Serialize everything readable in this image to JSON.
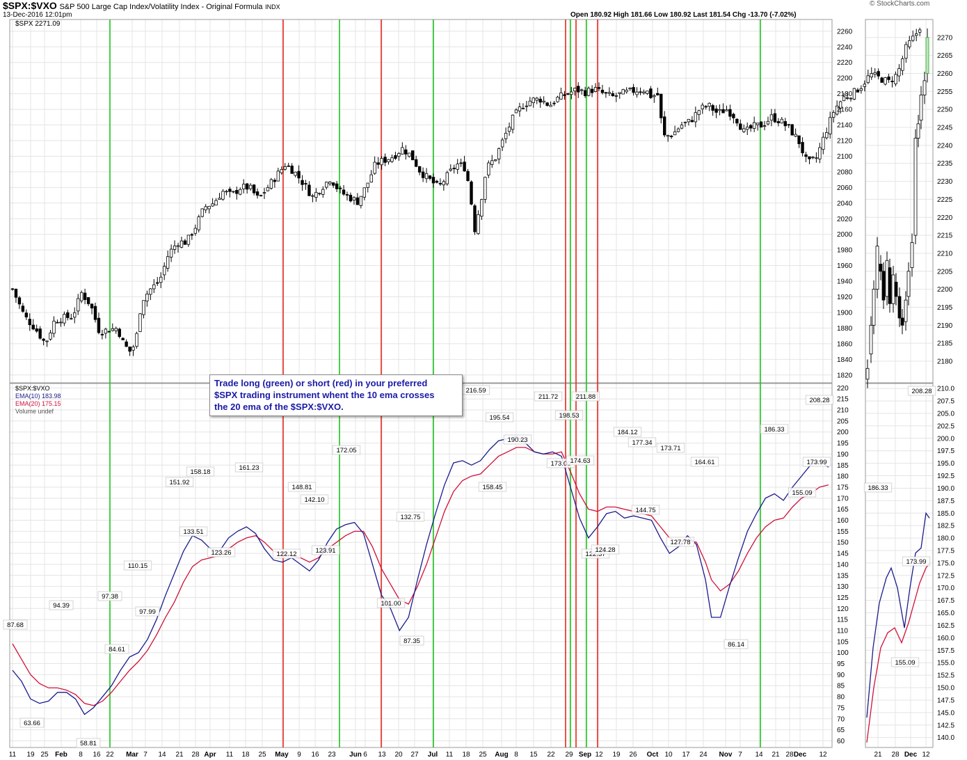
{
  "header": {
    "symbol": "$SPX:$VXO",
    "description": "S&P 500 Large Cap Index/Volatility Index - Original Formula",
    "exchange": "INDX",
    "timestamp": "13-Dec-2016 12:01pm",
    "source": "© StockCharts.com",
    "ohlc_line": "Open 180.92  High 181.66  Low 180.92  Last 181.54  Chg -13.70 (-7.02%)",
    "price_label": "$SPX 2271.09"
  },
  "legend": {
    "ratio": "$SPX:$VXO",
    "ema10": "EMA(10) 183.98",
    "ema20": "EMA(20) 175.15",
    "volume": "Volume undef"
  },
  "annotation": {
    "line1": "Trade long (green) or short (red) in your preferred",
    "line2": "$SPX trading instrument whent the 10 ema crosses",
    "line3": "the 20 ema of the $SPX:$VXO."
  },
  "colors": {
    "long": "#19c419",
    "short": "#e8251a",
    "ema10": "#1a1a8c",
    "ema20": "#d0103a",
    "grid": "#e4e4e4"
  },
  "chart_data": [
    {
      "type": "candlestick",
      "series": "$SPX",
      "ylim": [
        1810,
        2275
      ],
      "y_ticks": [
        1820,
        1840,
        1860,
        1880,
        1900,
        1920,
        1940,
        1960,
        1980,
        2000,
        2020,
        2040,
        2060,
        2080,
        2100,
        2120,
        2140,
        2160,
        2180,
        2200,
        2220,
        2240,
        2260
      ],
      "x_tick_labels": [
        "11",
        "19",
        "25",
        "Feb",
        "8",
        "16",
        "22",
        "Mar",
        "7",
        "14",
        "21",
        "28",
        "Apr",
        "11",
        "18",
        "25",
        "May",
        "9",
        "16",
        "23",
        "Jun",
        "6",
        "13",
        "20",
        "27",
        "Jul",
        "11",
        "18",
        "25",
        "Aug",
        "8",
        "15",
        "22",
        "29",
        "Sep",
        "12",
        "19",
        "26",
        "Oct",
        "10",
        "17",
        "24",
        "Nov",
        "7",
        "14",
        "21",
        "28",
        "Dec",
        "12"
      ],
      "close_path": [
        [
          0,
          1930
        ],
        [
          8,
          1895
        ],
        [
          15,
          1880
        ],
        [
          22,
          1860
        ],
        [
          28,
          1890
        ],
        [
          34,
          1893
        ],
        [
          40,
          1895
        ],
        [
          46,
          1925
        ],
        [
          52,
          1910
        ],
        [
          58,
          1875
        ],
        [
          64,
          1878
        ],
        [
          70,
          1880
        ],
        [
          74,
          1860
        ],
        [
          78,
          1850
        ],
        [
          82,
          1860
        ],
        [
          86,
          1915
        ],
        [
          92,
          1930
        ],
        [
          98,
          1940
        ],
        [
          104,
          1975
        ],
        [
          110,
          1990
        ],
        [
          116,
          1990
        ],
        [
          122,
          2010
        ],
        [
          128,
          2035
        ],
        [
          134,
          2040
        ],
        [
          140,
          2055
        ],
        [
          146,
          2050
        ],
        [
          152,
          2060
        ],
        [
          158,
          2060
        ],
        [
          164,
          2045
        ],
        [
          170,
          2060
        ],
        [
          176,
          2075
        ],
        [
          182,
          2090
        ],
        [
          188,
          2080
        ],
        [
          194,
          2065
        ],
        [
          200,
          2048
        ],
        [
          206,
          2060
        ],
        [
          212,
          2072
        ],
        [
          218,
          2055
        ],
        [
          224,
          2048
        ],
        [
          230,
          2042
        ],
        [
          236,
          2062
        ],
        [
          242,
          2090
        ],
        [
          248,
          2095
        ],
        [
          254,
          2100
        ],
        [
          260,
          2110
        ],
        [
          266,
          2100
        ],
        [
          272,
          2080
        ],
        [
          278,
          2070
        ],
        [
          284,
          2060
        ],
        [
          290,
          2075
        ],
        [
          296,
          2090
        ],
        [
          302,
          2085
        ],
        [
          305,
          2055
        ],
        [
          308,
          2005
        ],
        [
          312,
          2040
        ],
        [
          316,
          2085
        ],
        [
          322,
          2098
        ],
        [
          328,
          2125
        ],
        [
          334,
          2150
        ],
        [
          340,
          2165
        ],
        [
          346,
          2172
        ],
        [
          352,
          2173
        ],
        [
          358,
          2165
        ],
        [
          364,
          2175
        ],
        [
          370,
          2180
        ],
        [
          376,
          2185
        ],
        [
          382,
          2182
        ],
        [
          388,
          2186
        ],
        [
          394,
          2180
        ],
        [
          400,
          2176
        ],
        [
          406,
          2180
        ],
        [
          412,
          2183
        ],
        [
          418,
          2185
        ],
        [
          422,
          2185
        ],
        [
          426,
          2176
        ],
        [
          430,
          2180
        ],
        [
          434,
          2125
        ],
        [
          440,
          2128
        ],
        [
          446,
          2140
        ],
        [
          452,
          2145
        ],
        [
          458,
          2160
        ],
        [
          464,
          2165
        ],
        [
          470,
          2155
        ],
        [
          476,
          2160
        ],
        [
          482,
          2150
        ],
        [
          488,
          2130
        ],
        [
          494,
          2138
        ],
        [
          500,
          2140
        ],
        [
          506,
          2150
        ],
        [
          512,
          2145
        ],
        [
          518,
          2135
        ],
        [
          524,
          2120
        ],
        [
          530,
          2090
        ],
        [
          536,
          2098
        ],
        [
          542,
          2130
        ],
        [
          548,
          2160
        ],
        [
          554,
          2175
        ],
        [
          560,
          2180
        ],
        [
          566,
          2190
        ],
        [
          572,
          2205
        ],
        [
          578,
          2200
        ],
        [
          584,
          2195
        ],
        [
          590,
          2205
        ],
        [
          596,
          2240
        ],
        [
          602,
          2255
        ],
        [
          606,
          2270
        ]
      ]
    },
    {
      "type": "line",
      "series": [
        "$SPX:$VXO EMA(10)",
        "$SPX:$VXO EMA(20)"
      ],
      "ylim": [
        57,
        222
      ],
      "y_ticks": [
        60,
        65,
        70,
        75,
        80,
        85,
        90,
        95,
        100,
        105,
        110,
        115,
        120,
        125,
        130,
        135,
        140,
        145,
        150,
        155,
        160,
        165,
        170,
        175,
        180,
        185,
        190,
        195,
        200,
        205,
        210,
        215,
        220
      ],
      "ema10": [
        [
          0,
          92
        ],
        [
          6,
          87
        ],
        [
          12,
          79
        ],
        [
          18,
          77
        ],
        [
          24,
          78
        ],
        [
          30,
          82
        ],
        [
          36,
          82
        ],
        [
          42,
          79
        ],
        [
          48,
          72
        ],
        [
          54,
          75
        ],
        [
          60,
          80
        ],
        [
          66,
          85
        ],
        [
          72,
          92
        ],
        [
          78,
          98
        ],
        [
          84,
          100
        ],
        [
          90,
          106
        ],
        [
          96,
          115
        ],
        [
          102,
          126
        ],
        [
          108,
          136
        ],
        [
          114,
          146
        ],
        [
          120,
          153
        ],
        [
          126,
          151
        ],
        [
          132,
          147
        ],
        [
          138,
          146
        ],
        [
          144,
          152
        ],
        [
          150,
          155
        ],
        [
          156,
          157
        ],
        [
          162,
          154
        ],
        [
          168,
          147
        ],
        [
          174,
          142
        ],
        [
          180,
          141
        ],
        [
          186,
          143
        ],
        [
          192,
          140
        ],
        [
          198,
          137
        ],
        [
          204,
          142
        ],
        [
          210,
          150
        ],
        [
          216,
          156
        ],
        [
          222,
          158
        ],
        [
          228,
          159
        ],
        [
          234,
          154
        ],
        [
          240,
          140
        ],
        [
          246,
          126
        ],
        [
          252,
          120
        ],
        [
          258,
          110
        ],
        [
          264,
          116
        ],
        [
          270,
          133
        ],
        [
          276,
          149
        ],
        [
          282,
          163
        ],
        [
          288,
          176
        ],
        [
          294,
          186
        ],
        [
          300,
          187
        ],
        [
          306,
          185
        ],
        [
          312,
          187
        ],
        [
          318,
          192
        ],
        [
          324,
          196
        ],
        [
          330,
          197
        ],
        [
          336,
          198
        ],
        [
          342,
          195
        ],
        [
          348,
          191
        ],
        [
          354,
          190
        ],
        [
          360,
          191
        ],
        [
          366,
          189
        ],
        [
          372,
          175
        ],
        [
          378,
          161
        ],
        [
          384,
          152
        ],
        [
          390,
          157
        ],
        [
          396,
          163
        ],
        [
          402,
          164
        ],
        [
          408,
          161
        ],
        [
          414,
          162
        ],
        [
          420,
          161
        ],
        [
          426,
          160
        ],
        [
          432,
          152
        ],
        [
          438,
          145
        ],
        [
          444,
          148
        ],
        [
          450,
          153
        ],
        [
          456,
          149
        ],
        [
          462,
          133
        ],
        [
          466,
          116
        ],
        [
          472,
          116
        ],
        [
          478,
          130
        ],
        [
          484,
          143
        ],
        [
          490,
          155
        ],
        [
          496,
          163
        ],
        [
          502,
          170
        ],
        [
          508,
          172
        ],
        [
          514,
          169
        ],
        [
          520,
          175
        ],
        [
          526,
          180
        ],
        [
          532,
          185
        ],
        [
          538,
          187
        ],
        [
          544,
          184
        ]
      ],
      "ema20": [
        [
          0,
          104
        ],
        [
          6,
          97
        ],
        [
          12,
          90
        ],
        [
          18,
          86
        ],
        [
          24,
          84
        ],
        [
          30,
          84
        ],
        [
          36,
          83
        ],
        [
          42,
          81
        ],
        [
          48,
          77
        ],
        [
          54,
          76
        ],
        [
          60,
          78
        ],
        [
          66,
          82
        ],
        [
          72,
          87
        ],
        [
          78,
          92
        ],
        [
          84,
          96
        ],
        [
          90,
          101
        ],
        [
          96,
          108
        ],
        [
          102,
          116
        ],
        [
          108,
          123
        ],
        [
          114,
          132
        ],
        [
          120,
          139
        ],
        [
          126,
          142
        ],
        [
          132,
          143
        ],
        [
          138,
          144
        ],
        [
          144,
          147
        ],
        [
          150,
          150
        ],
        [
          156,
          152
        ],
        [
          162,
          153
        ],
        [
          168,
          150
        ],
        [
          174,
          146
        ],
        [
          180,
          145
        ],
        [
          186,
          144
        ],
        [
          192,
          143
        ],
        [
          198,
          141
        ],
        [
          204,
          143
        ],
        [
          210,
          147
        ],
        [
          216,
          150
        ],
        [
          222,
          153
        ],
        [
          228,
          155
        ],
        [
          234,
          155
        ],
        [
          240,
          148
        ],
        [
          246,
          138
        ],
        [
          252,
          131
        ],
        [
          258,
          124
        ],
        [
          264,
          122
        ],
        [
          270,
          130
        ],
        [
          276,
          140
        ],
        [
          282,
          152
        ],
        [
          288,
          164
        ],
        [
          294,
          173
        ],
        [
          300,
          178
        ],
        [
          306,
          180
        ],
        [
          312,
          181
        ],
        [
          318,
          185
        ],
        [
          324,
          189
        ],
        [
          330,
          191
        ],
        [
          336,
          193
        ],
        [
          342,
          193
        ],
        [
          348,
          191
        ],
        [
          354,
          190
        ],
        [
          360,
          190
        ],
        [
          366,
          191
        ],
        [
          372,
          182
        ],
        [
          378,
          172
        ],
        [
          384,
          165
        ],
        [
          390,
          164
        ],
        [
          396,
          166
        ],
        [
          402,
          166
        ],
        [
          408,
          165
        ],
        [
          414,
          164
        ],
        [
          420,
          163
        ],
        [
          426,
          162
        ],
        [
          432,
          157
        ],
        [
          438,
          152
        ],
        [
          444,
          150
        ],
        [
          450,
          151
        ],
        [
          456,
          150
        ],
        [
          462,
          141
        ],
        [
          466,
          133
        ],
        [
          472,
          128
        ],
        [
          478,
          131
        ],
        [
          484,
          137
        ],
        [
          490,
          145
        ],
        [
          496,
          152
        ],
        [
          502,
          157
        ],
        [
          508,
          160
        ],
        [
          514,
          161
        ],
        [
          520,
          166
        ],
        [
          526,
          170
        ],
        [
          532,
          172
        ],
        [
          538,
          175
        ],
        [
          544,
          176
        ]
      ],
      "value_labels": [
        "87.68",
        "94.39",
        "63.66",
        "58.81",
        "97.38",
        "84.61",
        "110.15",
        "97.99",
        "151.92",
        "133.51",
        "158.18",
        "123.26",
        "161.23",
        "148.81",
        "122.12",
        "142.10",
        "123.91",
        "172.05",
        "132.75",
        "101.00",
        "87.35",
        "216.59",
        "158.45",
        "195.54",
        "190.23",
        "211.72",
        "198.53",
        "173.00",
        "174.63",
        "211.88",
        "122.37",
        "124.28",
        "184.12",
        "177.34",
        "144.75",
        "173.71",
        "127.78",
        "164.61",
        "86.14",
        "186.33",
        "155.09",
        "173.99",
        "208.28"
      ]
    },
    {
      "type": "candlestick",
      "series": "$SPX zoom",
      "ylim": [
        2174,
        2275
      ],
      "y_ticks": [
        2180,
        2185,
        2190,
        2195,
        2200,
        2205,
        2210,
        2215,
        2220,
        2225,
        2230,
        2235,
        2240,
        2245,
        2250,
        2255,
        2260,
        2265,
        2270
      ],
      "x_tick_labels": [
        "21",
        "28",
        "Dec",
        "12"
      ]
    },
    {
      "type": "line",
      "series": "$SPX:$VXO zoom",
      "ylim": [
        138,
        211
      ],
      "y_ticks": [
        140.0,
        142.5,
        145.0,
        147.5,
        150.0,
        152.5,
        155.0,
        157.5,
        160.0,
        162.5,
        165.0,
        167.5,
        170.0,
        172.5,
        175.0,
        177.5,
        180.0,
        182.5,
        185.0,
        187.5,
        190.0,
        192.5,
        195.0,
        197.5,
        200.0,
        202.5,
        205.0,
        207.5,
        210.0
      ],
      "value_labels": [
        "186.33",
        "155.09",
        "173.99",
        "208.28"
      ]
    }
  ],
  "signals": [
    {
      "kind": "long"
    },
    {
      "kind": "short"
    },
    {
      "kind": "long"
    },
    {
      "kind": "short"
    },
    {
      "kind": "long"
    },
    {
      "kind": "short"
    },
    {
      "kind": "long"
    },
    {
      "kind": "short"
    },
    {
      "kind": "long"
    },
    {
      "kind": "short"
    },
    {
      "kind": "long"
    }
  ]
}
